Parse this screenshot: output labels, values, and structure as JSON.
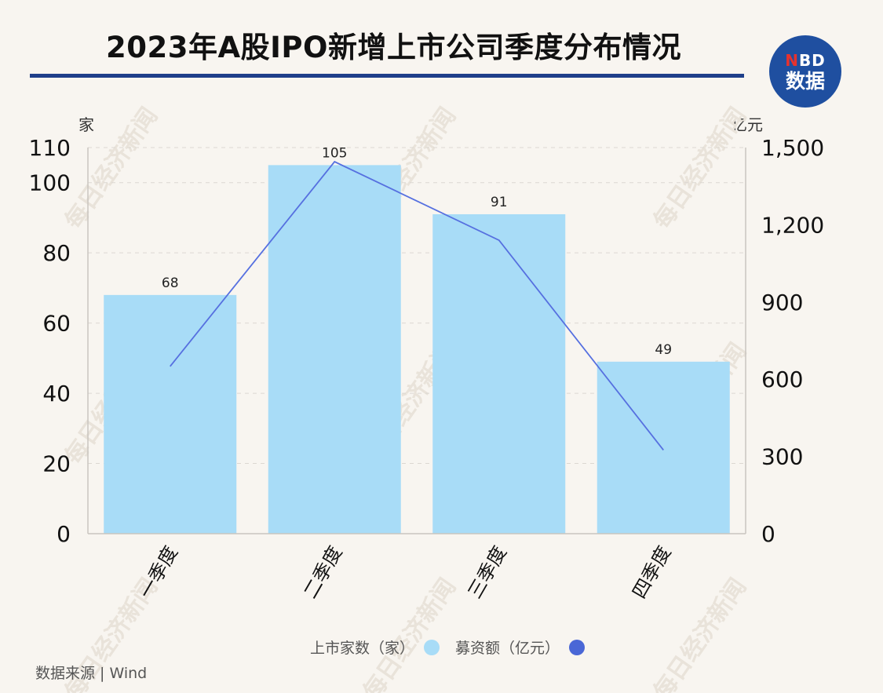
{
  "header": {
    "title": "2023年A股IPO新增上市公司季度分布情况",
    "logo_top": "NBD",
    "logo_bottom": "数据"
  },
  "units": {
    "left": "家",
    "right": "亿元"
  },
  "legend": {
    "bar_label": "上市家数（家）",
    "line_label": "募资额（亿元）"
  },
  "source": "数据来源 | Wind",
  "watermark": "每日经济新闻",
  "colors": {
    "bar": "#a8dcf7",
    "line": "#5670e0",
    "rule": "#1f3f8a",
    "legend_line_dot": "#4a67d6"
  },
  "chart_data": {
    "type": "bar",
    "categories": [
      "一季度",
      "二季度",
      "三季度",
      "四季度"
    ],
    "series": [
      {
        "name": "上市家数（家）",
        "type": "bar",
        "axis": "left",
        "values": [
          68,
          105,
          91,
          49
        ]
      },
      {
        "name": "募资额（亿元）",
        "type": "line",
        "axis": "right",
        "values": [
          650,
          1445,
          1140,
          325
        ]
      }
    ],
    "left_axis": {
      "ylim": [
        0,
        110
      ],
      "ticks": [
        0,
        20,
        40,
        60,
        80,
        100,
        110
      ]
    },
    "right_axis": {
      "ylim": [
        0,
        1500
      ],
      "ticks": [
        "0",
        "300",
        "600",
        "900",
        "1,200",
        "1,500"
      ]
    },
    "data_labels": [
      "68",
      "105",
      "91",
      "49"
    ],
    "grid": true
  }
}
